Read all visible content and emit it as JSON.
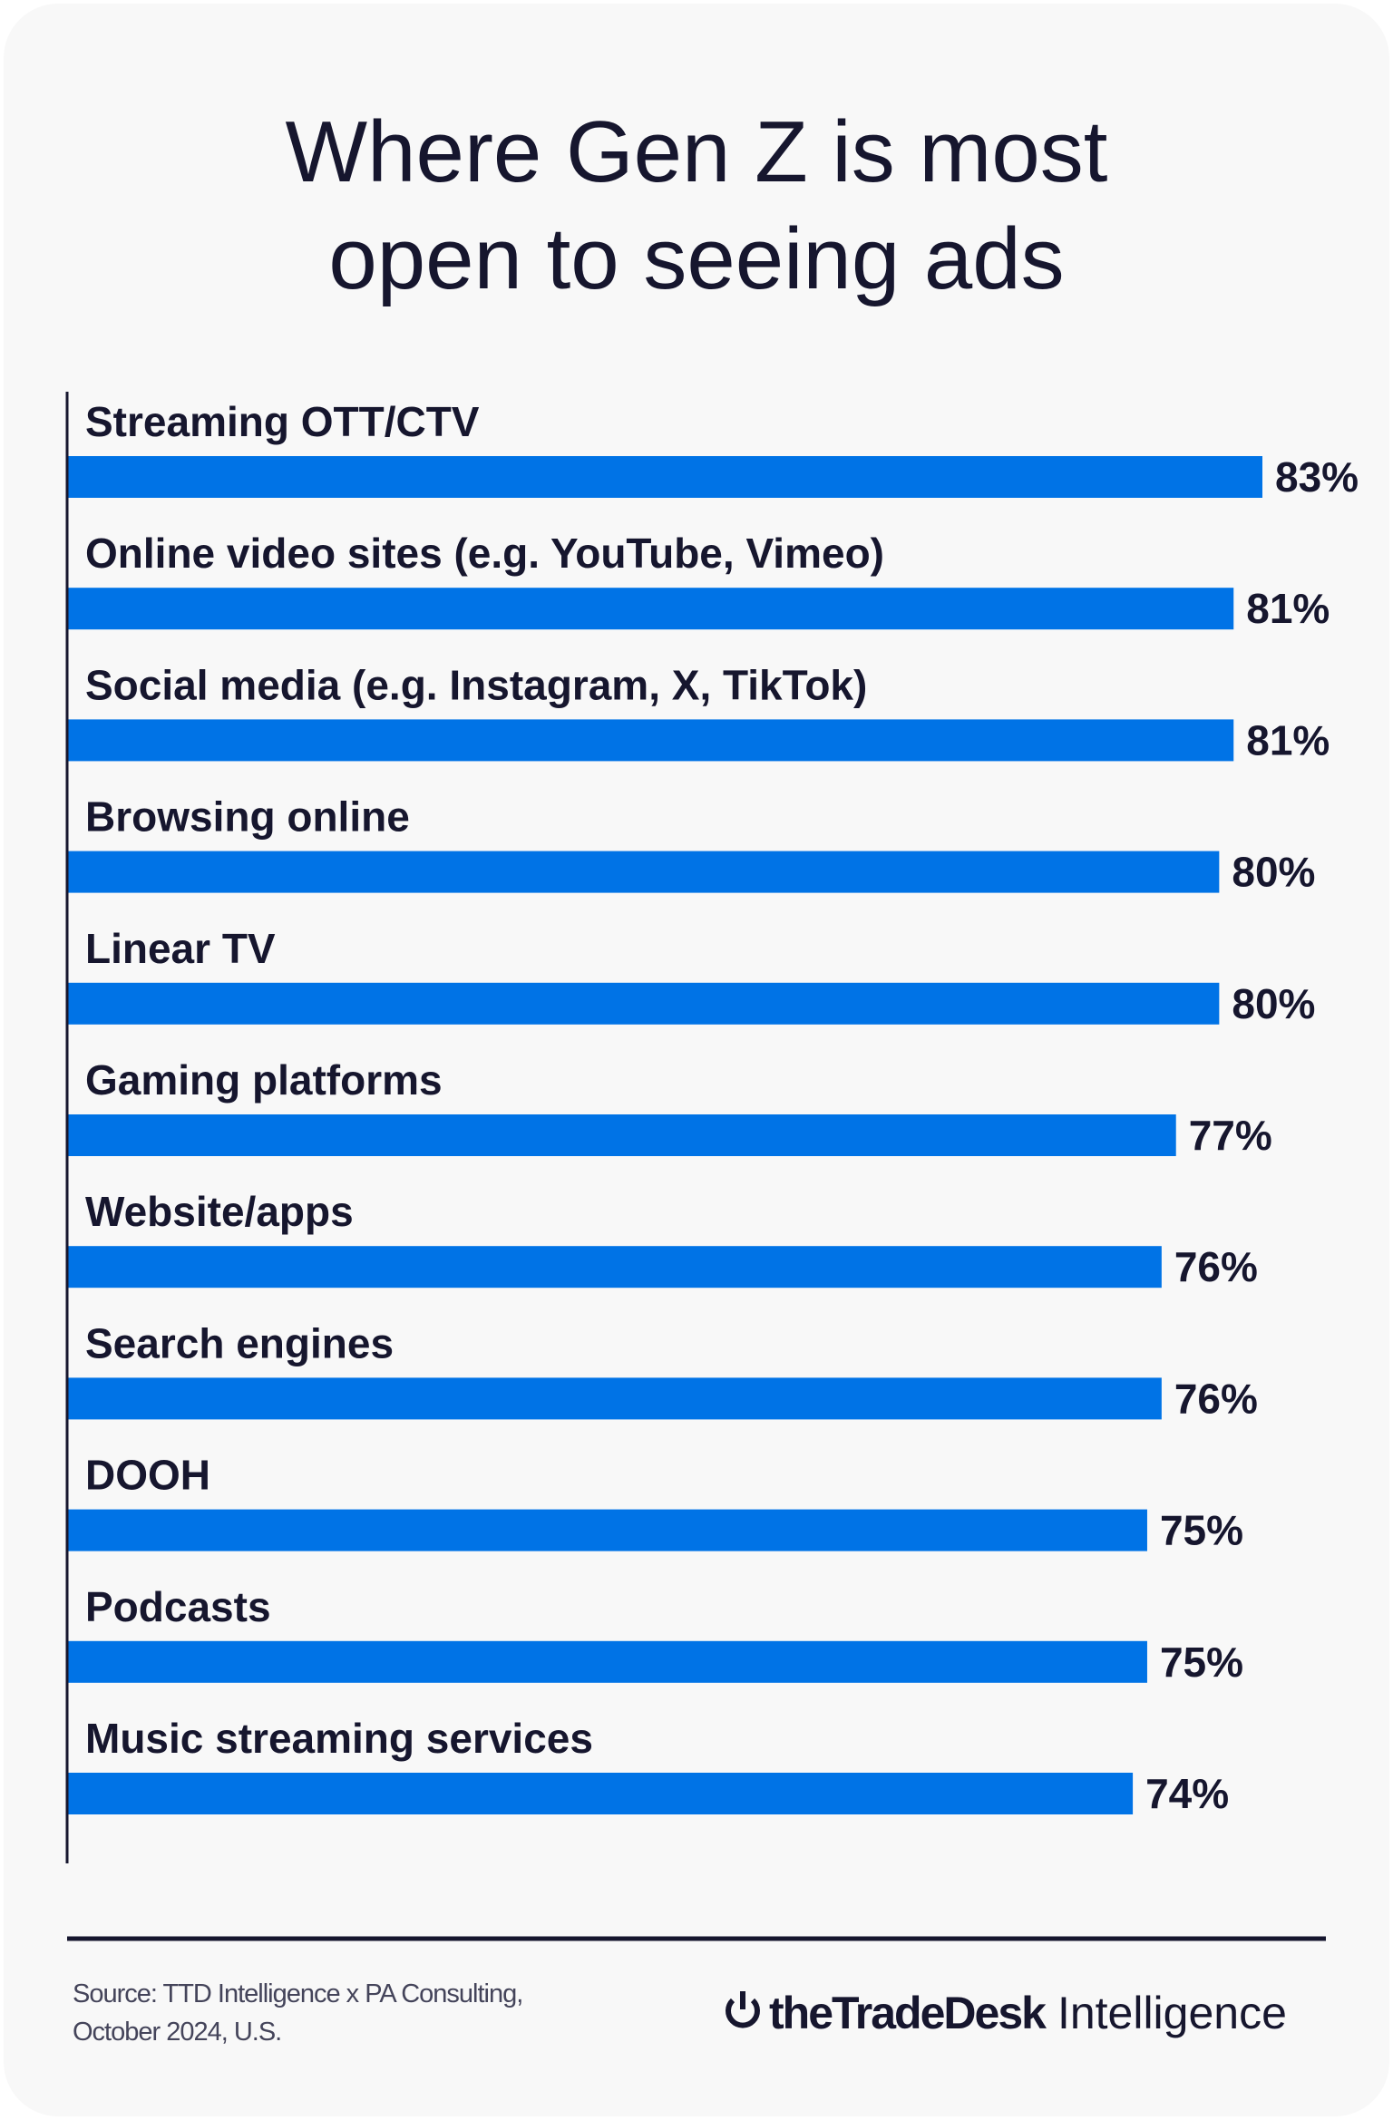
{
  "chart_data": {
    "type": "bar",
    "orientation": "horizontal",
    "title": "Where Gen Z is most open to seeing ads",
    "title_lines": [
      "Where Gen Z is most",
      "open to seeing ads"
    ],
    "categories": [
      "Streaming OTT/CTV",
      "Online video sites (e.g. YouTube, Vimeo)",
      "Social media (e.g. Instagram, X, TikTok)",
      "Browsing online",
      "Linear TV",
      "Gaming platforms",
      "Website/apps",
      "Search engines",
      "DOOH",
      "Podcasts",
      "Music streaming services"
    ],
    "values": [
      83,
      81,
      81,
      80,
      80,
      77,
      76,
      76,
      75,
      75,
      74
    ],
    "unit": "%",
    "xlim": [
      0,
      100
    ],
    "grid": false,
    "bar_color": "#0073e6",
    "text_color": "#16162e"
  },
  "footer": {
    "source_lines": [
      "Source: TTD Intelligence x PA Consulting,",
      "October 2024, U.S."
    ],
    "logo_bold": "theTradeDesk",
    "logo_regular": "Intelligence"
  }
}
